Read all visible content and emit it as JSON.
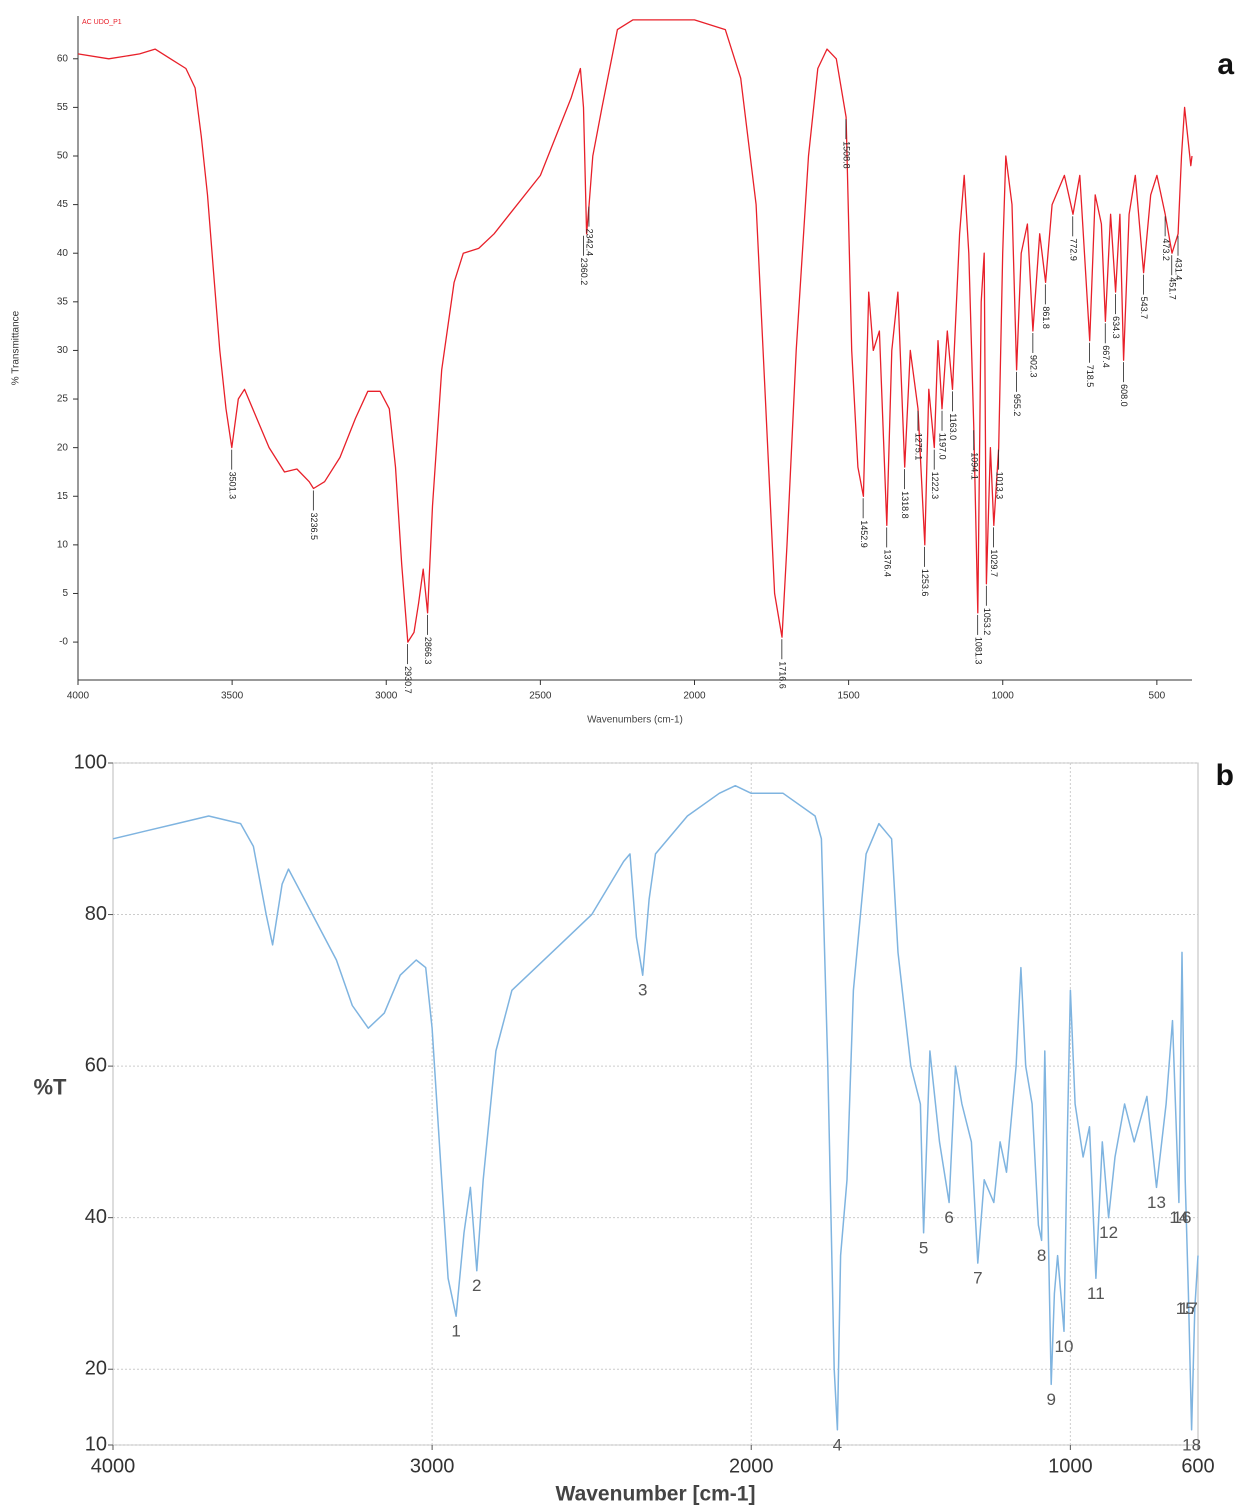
{
  "chart_data": [
    {
      "type": "line",
      "panel": "a",
      "title": "AC UDO_P1",
      "xlabel": "Wavenumbers (cm-1)",
      "ylabel": "% Transmittance",
      "color": "#e8202a",
      "grid": false,
      "xlim": [
        4000,
        386
      ],
      "ylim": [
        -3.9,
        64.4
      ],
      "xticks": [
        4000,
        3500,
        3000,
        2500,
        2000,
        1500,
        1000,
        500
      ],
      "yticks": [
        {
          "value": 0,
          "label": "-0"
        },
        5,
        10,
        15,
        20,
        25,
        30,
        35,
        40,
        45,
        50,
        55,
        60
      ],
      "x": [
        4000,
        3900,
        3800,
        3750,
        3700,
        3650,
        3620,
        3600,
        3580,
        3560,
        3540,
        3520,
        3501,
        3480,
        3460,
        3420,
        3380,
        3330,
        3290,
        3250,
        3236,
        3200,
        3150,
        3100,
        3060,
        3020,
        2990,
        2970,
        2950,
        2930,
        2910,
        2895,
        2880,
        2866,
        2850,
        2820,
        2780,
        2750,
        2700,
        2650,
        2600,
        2500,
        2400,
        2370,
        2360,
        2350,
        2342,
        2330,
        2300,
        2250,
        2200,
        2100,
        2000,
        1900,
        1850,
        1800,
        1770,
        1740,
        1716,
        1700,
        1670,
        1630,
        1600,
        1570,
        1540,
        1508,
        1490,
        1470,
        1452,
        1435,
        1420,
        1400,
        1376,
        1360,
        1340,
        1318,
        1300,
        1275,
        1253,
        1240,
        1222,
        1210,
        1197,
        1180,
        1163,
        1140,
        1125,
        1110,
        1094,
        1081,
        1070,
        1060,
        1053,
        1040,
        1029,
        1013,
        1000,
        990,
        970,
        955,
        940,
        920,
        902,
        880,
        861,
        840,
        800,
        772,
        750,
        718,
        700,
        680,
        667,
        650,
        634,
        620,
        608,
        590,
        570,
        543,
        520,
        500,
        473,
        451,
        431,
        420,
        410,
        400,
        390,
        386
      ],
      "values": [
        60.5,
        60,
        60.5,
        61,
        60,
        59,
        57,
        52,
        46,
        38,
        30,
        24,
        20,
        25,
        26,
        23,
        20,
        17.5,
        17.8,
        16.5,
        15.8,
        16.5,
        19,
        23,
        25.8,
        25.8,
        24,
        18,
        8,
        0,
        1,
        4,
        7.5,
        3,
        14,
        28,
        37,
        40,
        40.5,
        42,
        44,
        48,
        56,
        59,
        55,
        42,
        45,
        50,
        55,
        63,
        64,
        64,
        64,
        63,
        58,
        45,
        25,
        5,
        0.5,
        10,
        30,
        50,
        59,
        61,
        60,
        54,
        30,
        18,
        15,
        36,
        30,
        32,
        12,
        30,
        36,
        18,
        30,
        24,
        10,
        26,
        20,
        31,
        24,
        32,
        26,
        42,
        48,
        40,
        22,
        3,
        35,
        40,
        6,
        20,
        12,
        20,
        40,
        50,
        45,
        28,
        40,
        43,
        32,
        42,
        37,
        45,
        48,
        44,
        48,
        31,
        46,
        43,
        33,
        44,
        36,
        44,
        29,
        44,
        48,
        38,
        46,
        48,
        44,
        40,
        42,
        50,
        55,
        52,
        49,
        50
      ],
      "annotations": [
        {
          "label": "3501.3",
          "x": 3501.3,
          "y": 20
        },
        {
          "label": "3236.5",
          "x": 3236.5,
          "y": 15.8
        },
        {
          "label": "2930.7",
          "x": 2930.7,
          "y": 0
        },
        {
          "label": "2866.3",
          "x": 2866.3,
          "y": 3
        },
        {
          "label": "2360.2",
          "x": 2360.2,
          "y": 42
        },
        {
          "label": "2342.4",
          "x": 2342.4,
          "y": 45
        },
        {
          "label": "1716.6",
          "x": 1716.6,
          "y": 0.5
        },
        {
          "label": "1508.8",
          "x": 1508.8,
          "y": 54
        },
        {
          "label": "1452.9",
          "x": 1452.9,
          "y": 15
        },
        {
          "label": "1376.4",
          "x": 1376.4,
          "y": 12
        },
        {
          "label": "1318.8",
          "x": 1318.8,
          "y": 18
        },
        {
          "label": "1275.1",
          "x": 1275.1,
          "y": 24
        },
        {
          "label": "1253.6",
          "x": 1253.6,
          "y": 10
        },
        {
          "label": "1222.3",
          "x": 1222.3,
          "y": 20
        },
        {
          "label": "1197.0",
          "x": 1197.0,
          "y": 24
        },
        {
          "label": "1163.0",
          "x": 1163.0,
          "y": 26
        },
        {
          "label": "1094.1",
          "x": 1094.1,
          "y": 22
        },
        {
          "label": "1081.3",
          "x": 1081.3,
          "y": 3
        },
        {
          "label": "1053.2",
          "x": 1053.2,
          "y": 6
        },
        {
          "label": "1029.7",
          "x": 1029.7,
          "y": 12
        },
        {
          "label": "1013.3",
          "x": 1013.3,
          "y": 20
        },
        {
          "label": "955.2",
          "x": 955.2,
          "y": 28
        },
        {
          "label": "902.3",
          "x": 902.3,
          "y": 32
        },
        {
          "label": "861.8",
          "x": 861.8,
          "y": 37
        },
        {
          "label": "772.9",
          "x": 772.9,
          "y": 44
        },
        {
          "label": "718.5",
          "x": 718.5,
          "y": 31
        },
        {
          "label": "667.4",
          "x": 667.4,
          "y": 33
        },
        {
          "label": "634.3",
          "x": 634.3,
          "y": 36
        },
        {
          "label": "608.0",
          "x": 608.0,
          "y": 29
        },
        {
          "label": "543.7",
          "x": 543.7,
          "y": 38
        },
        {
          "label": "473.2",
          "x": 473.2,
          "y": 44
        },
        {
          "label": "451.7",
          "x": 451.7,
          "y": 40
        },
        {
          "label": "431.4",
          "x": 431.4,
          "y": 42
        }
      ]
    },
    {
      "type": "line",
      "panel": "b",
      "xlabel": "Wavenumber [cm-1]",
      "ylabel": "%T",
      "color": "#7fb4e0",
      "grid": true,
      "xlim": [
        4000,
        600
      ],
      "ylim": [
        10,
        100
      ],
      "xticks": [
        4000,
        3000,
        2000,
        1000,
        600
      ],
      "yticks": [
        10,
        20,
        40,
        60,
        80,
        100
      ],
      "x": [
        4000,
        3900,
        3800,
        3700,
        3600,
        3560,
        3520,
        3500,
        3470,
        3450,
        3400,
        3300,
        3250,
        3200,
        3150,
        3100,
        3050,
        3020,
        3000,
        2970,
        2950,
        2925,
        2900,
        2880,
        2860,
        2840,
        2800,
        2750,
        2700,
        2600,
        2500,
        2400,
        2380,
        2360,
        2340,
        2320,
        2300,
        2200,
        2100,
        2050,
        2000,
        1900,
        1800,
        1780,
        1760,
        1740,
        1730,
        1720,
        1700,
        1680,
        1640,
        1600,
        1560,
        1540,
        1500,
        1470,
        1460,
        1440,
        1410,
        1380,
        1360,
        1340,
        1310,
        1290,
        1270,
        1240,
        1220,
        1200,
        1170,
        1155,
        1140,
        1120,
        1100,
        1090,
        1080,
        1070,
        1060,
        1050,
        1040,
        1020,
        1010,
        1000,
        985,
        960,
        940,
        920,
        900,
        880,
        860,
        830,
        800,
        760,
        730,
        700,
        680,
        660,
        650,
        640,
        630,
        620,
        610,
        600
      ],
      "values": [
        90,
        91,
        92,
        93,
        92,
        89,
        80,
        76,
        84,
        86,
        82,
        74,
        68,
        65,
        67,
        72,
        74,
        73,
        65,
        45,
        32,
        27,
        38,
        44,
        33,
        45,
        62,
        70,
        72,
        76,
        80,
        87,
        88,
        77,
        72,
        82,
        88,
        93,
        96,
        97,
        96,
        96,
        93,
        90,
        60,
        20,
        12,
        35,
        45,
        70,
        88,
        92,
        90,
        75,
        60,
        55,
        38,
        62,
        50,
        42,
        60,
        55,
        50,
        34,
        45,
        42,
        50,
        46,
        60,
        73,
        60,
        55,
        39,
        37,
        62,
        40,
        18,
        30,
        35,
        25,
        50,
        70,
        55,
        48,
        52,
        32,
        50,
        40,
        48,
        55,
        50,
        56,
        44,
        55,
        66,
        42,
        75,
        45,
        30,
        12,
        28,
        35
      ],
      "annotations": [
        {
          "label": "1",
          "x": 2925,
          "y": 27
        },
        {
          "label": "2",
          "x": 2860,
          "y": 33
        },
        {
          "label": "3",
          "x": 2340,
          "y": 72
        },
        {
          "label": "4",
          "x": 1730,
          "y": 12
        },
        {
          "label": "5",
          "x": 1460,
          "y": 38
        },
        {
          "label": "6",
          "x": 1380,
          "y": 42
        },
        {
          "label": "7",
          "x": 1290,
          "y": 34
        },
        {
          "label": "8",
          "x": 1090,
          "y": 37
        },
        {
          "label": "9",
          "x": 1060,
          "y": 18
        },
        {
          "label": "10",
          "x": 1020,
          "y": 25
        },
        {
          "label": "11",
          "x": 920,
          "y": 32
        },
        {
          "label": "12",
          "x": 880,
          "y": 40
        },
        {
          "label": "13",
          "x": 730,
          "y": 44
        },
        {
          "label": "14",
          "x": 660,
          "y": 42
        },
        {
          "label": "15",
          "x": 640,
          "y": 30
        },
        {
          "label": "16",
          "x": 650,
          "y": 42
        },
        {
          "label": "17",
          "x": 630,
          "y": 30
        },
        {
          "label": "18",
          "x": 620,
          "y": 12
        }
      ]
    }
  ]
}
